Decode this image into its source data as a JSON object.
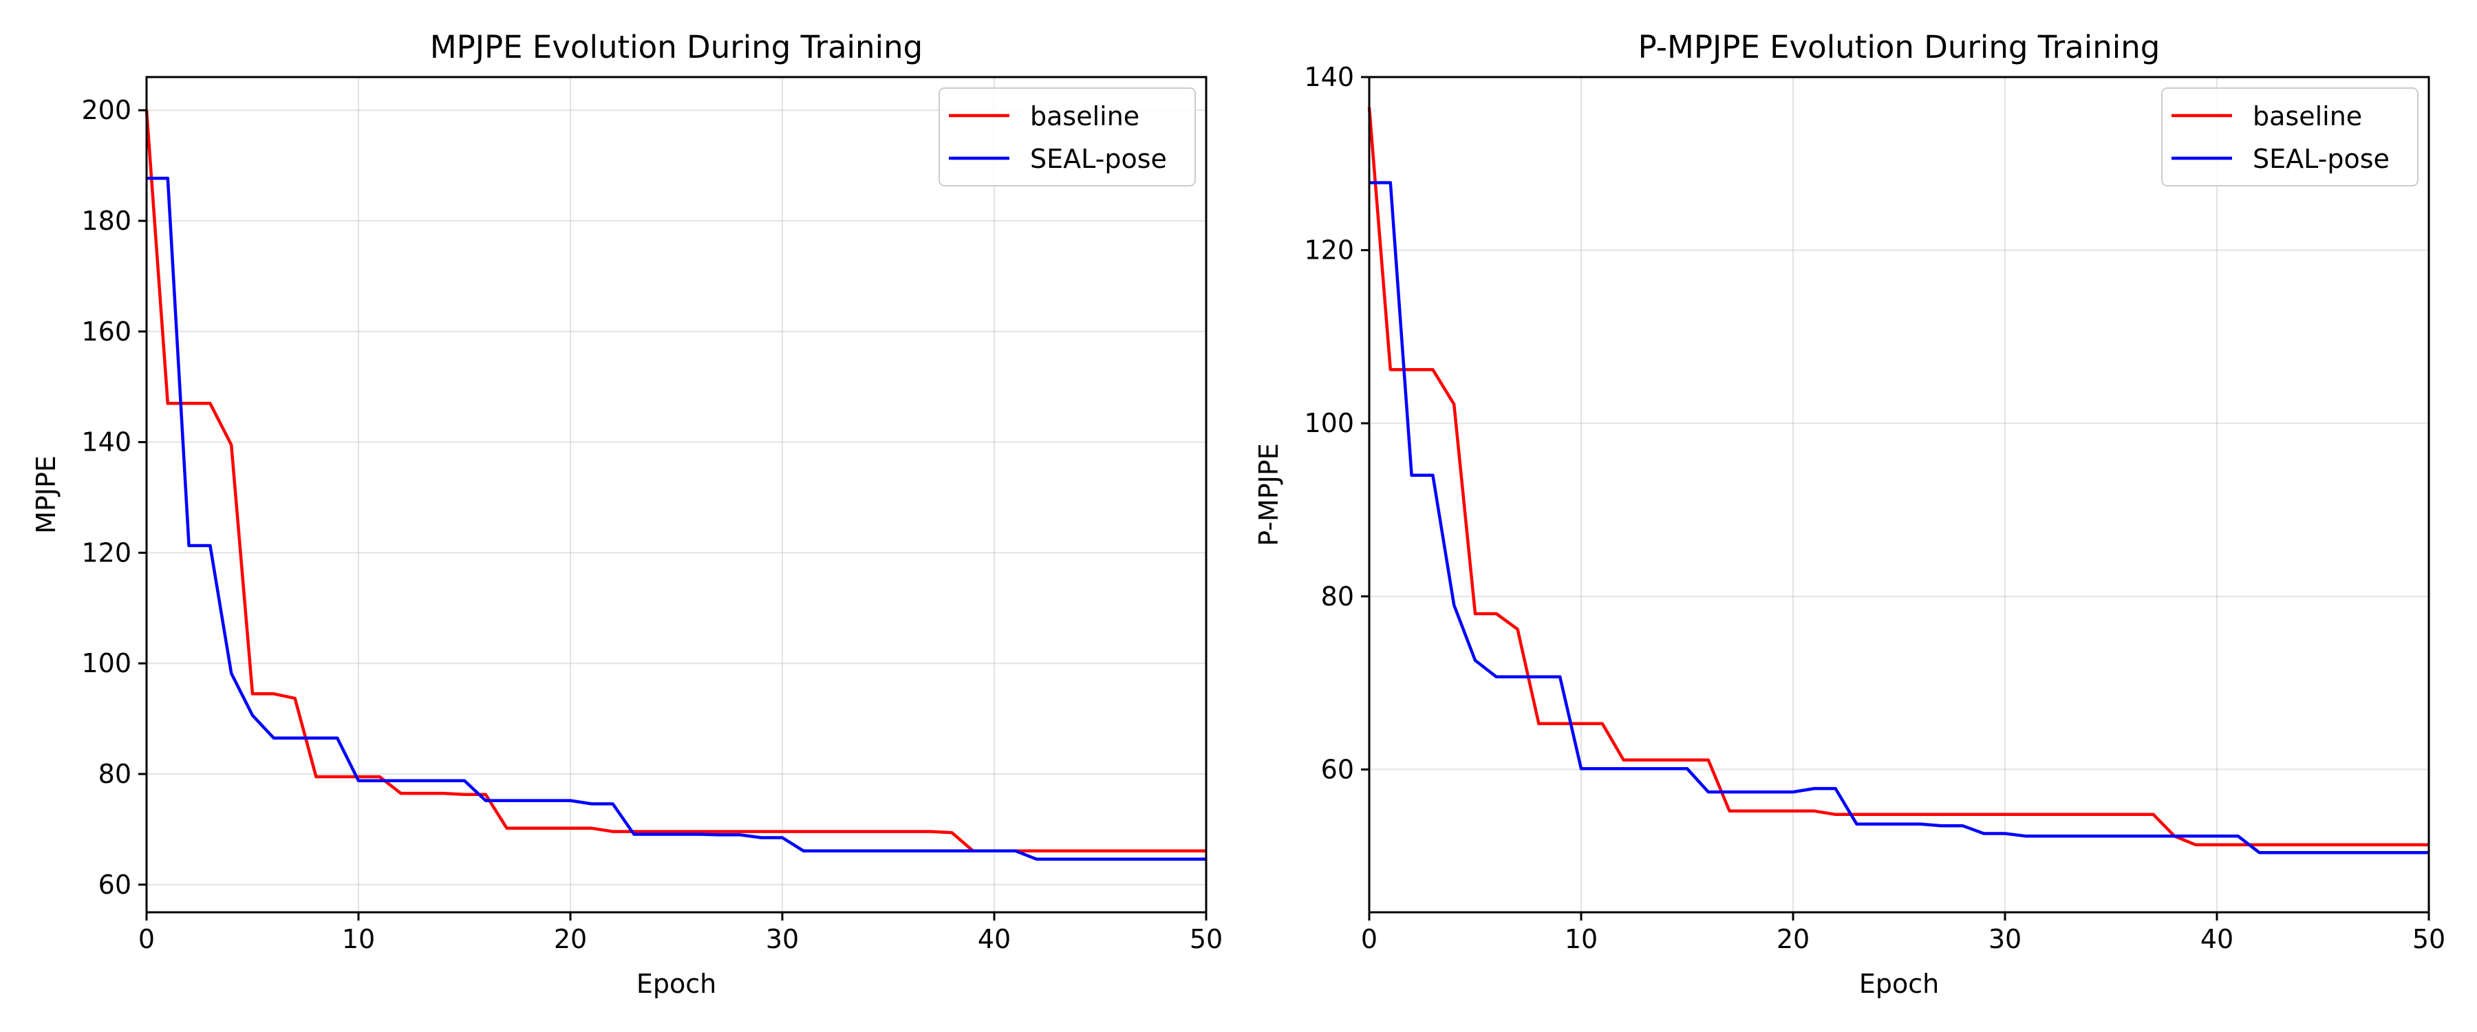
{
  "chart_data": [
    {
      "type": "line",
      "title": "MPJPE Evolution During Training",
      "xlabel": "Epoch",
      "ylabel": "MPJPE",
      "xlim": [
        0,
        50
      ],
      "ylim": [
        55,
        206
      ],
      "xticks": [
        0,
        10,
        20,
        30,
        40,
        50
      ],
      "yticks": [
        60,
        80,
        100,
        120,
        140,
        160,
        180,
        200
      ],
      "grid": true,
      "legend_position": "top-right",
      "series": [
        {
          "name": "baseline",
          "color": "#ff0000",
          "x": [
            0,
            1,
            2,
            3,
            4,
            5,
            6,
            7,
            8,
            9,
            10,
            11,
            12,
            13,
            14,
            15,
            16,
            17,
            18,
            19,
            20,
            21,
            22,
            23,
            24,
            25,
            26,
            27,
            28,
            29,
            30,
            31,
            32,
            33,
            34,
            35,
            36,
            37,
            38,
            39,
            40,
            41,
            42,
            43,
            44,
            45,
            46,
            47,
            48,
            49,
            50
          ],
          "y": [
            200,
            147,
            147,
            147,
            139.5,
            94.5,
            94.5,
            93.7,
            79.5,
            79.5,
            79.5,
            79.5,
            76.5,
            76.5,
            76.5,
            76.3,
            76.3,
            70.2,
            70.2,
            70.2,
            70.2,
            70.2,
            69.6,
            69.6,
            69.6,
            69.6,
            69.6,
            69.6,
            69.6,
            69.6,
            69.6,
            69.6,
            69.6,
            69.6,
            69.6,
            69.6,
            69.6,
            69.6,
            69.4,
            66.1,
            66.1,
            66.1,
            66.1,
            66.1,
            66.1,
            66.1,
            66.1,
            66.1,
            66.1,
            66.1,
            66.1
          ]
        },
        {
          "name": "SEAL-pose",
          "color": "#0000ff",
          "x": [
            0,
            1,
            2,
            3,
            4,
            5,
            6,
            7,
            8,
            9,
            10,
            11,
            12,
            13,
            14,
            15,
            16,
            17,
            18,
            19,
            20,
            21,
            22,
            23,
            24,
            25,
            26,
            27,
            28,
            29,
            30,
            31,
            32,
            33,
            34,
            35,
            36,
            37,
            38,
            39,
            40,
            41,
            42,
            43,
            44,
            45,
            46,
            47,
            48,
            49,
            50
          ],
          "y": [
            187.7,
            187.7,
            121.3,
            121.3,
            98.2,
            90.6,
            86.5,
            86.5,
            86.5,
            86.5,
            78.8,
            78.8,
            78.8,
            78.8,
            78.8,
            78.8,
            75.2,
            75.2,
            75.2,
            75.2,
            75.2,
            74.6,
            74.6,
            69.1,
            69.1,
            69.1,
            69.1,
            69.0,
            69.0,
            68.5,
            68.5,
            66.1,
            66.1,
            66.1,
            66.1,
            66.1,
            66.1,
            66.1,
            66.1,
            66.1,
            66.1,
            66.1,
            64.6,
            64.6,
            64.6,
            64.6,
            64.6,
            64.6,
            64.6,
            64.6,
            64.6
          ]
        }
      ]
    },
    {
      "type": "line",
      "title": "P-MPJPE Evolution During Training",
      "xlabel": "Epoch",
      "ylabel": "P-MPJPE",
      "xlim": [
        0,
        50
      ],
      "ylim": [
        43.5,
        140
      ],
      "xticks": [
        0,
        10,
        20,
        30,
        40,
        50
      ],
      "yticks": [
        60,
        80,
        100,
        120,
        140
      ],
      "grid": true,
      "legend_position": "top-right",
      "series": [
        {
          "name": "baseline",
          "color": "#ff0000",
          "x": [
            0,
            1,
            2,
            3,
            4,
            5,
            6,
            7,
            8,
            9,
            10,
            11,
            12,
            13,
            14,
            15,
            16,
            17,
            18,
            19,
            20,
            21,
            22,
            23,
            24,
            25,
            26,
            27,
            28,
            29,
            30,
            31,
            32,
            33,
            34,
            35,
            36,
            37,
            38,
            39,
            40,
            41,
            42,
            43,
            44,
            45,
            46,
            47,
            48,
            49,
            50
          ],
          "y": [
            136.5,
            106.2,
            106.2,
            106.2,
            102.2,
            78.0,
            78.0,
            76.2,
            65.3,
            65.3,
            65.3,
            65.3,
            61.1,
            61.1,
            61.1,
            61.1,
            61.1,
            55.2,
            55.2,
            55.2,
            55.2,
            55.2,
            54.8,
            54.8,
            54.8,
            54.8,
            54.8,
            54.8,
            54.8,
            54.8,
            54.8,
            54.8,
            54.8,
            54.8,
            54.8,
            54.8,
            54.8,
            54.8,
            52.3,
            51.3,
            51.3,
            51.3,
            51.3,
            51.3,
            51.3,
            51.3,
            51.3,
            51.3,
            51.3,
            51.3,
            51.3
          ]
        },
        {
          "name": "SEAL-pose",
          "color": "#0000ff",
          "x": [
            0,
            1,
            2,
            3,
            4,
            5,
            6,
            7,
            8,
            9,
            10,
            11,
            12,
            13,
            14,
            15,
            16,
            17,
            18,
            19,
            20,
            21,
            22,
            23,
            24,
            25,
            26,
            27,
            28,
            29,
            30,
            31,
            32,
            33,
            34,
            35,
            36,
            37,
            38,
            39,
            40,
            41,
            42,
            43,
            44,
            45,
            46,
            47,
            48,
            49,
            50
          ],
          "y": [
            127.8,
            127.8,
            94.0,
            94.0,
            79.0,
            72.6,
            70.7,
            70.7,
            70.7,
            70.7,
            60.1,
            60.1,
            60.1,
            60.1,
            60.1,
            60.1,
            57.4,
            57.4,
            57.4,
            57.4,
            57.4,
            57.8,
            57.8,
            53.7,
            53.7,
            53.7,
            53.7,
            53.5,
            53.5,
            52.6,
            52.6,
            52.3,
            52.3,
            52.3,
            52.3,
            52.3,
            52.3,
            52.3,
            52.3,
            52.3,
            52.3,
            52.3,
            50.4,
            50.4,
            50.4,
            50.4,
            50.4,
            50.4,
            50.4,
            50.4,
            50.4
          ]
        }
      ]
    }
  ]
}
